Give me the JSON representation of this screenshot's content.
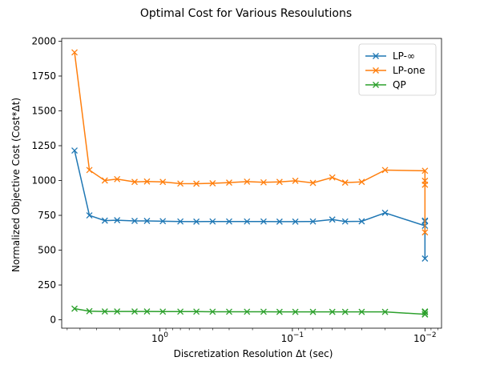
{
  "chart_data": {
    "type": "line",
    "title": "Optimal Cost for Various Resoulutions",
    "xlabel": "Discretization Resolution Δt (sec)",
    "ylabel": "Normalized Objective Cost (Cost*Δt)",
    "x_scale": "log",
    "x_inverted": true,
    "xlim": [
      5.5,
      0.0075
    ],
    "ylim": [
      -60,
      2020
    ],
    "x_ticks": [
      {
        "value": 1,
        "label": "10^0"
      },
      {
        "value": 0.1,
        "label": "10^-1"
      },
      {
        "value": 0.01,
        "label": "10^-2"
      }
    ],
    "y_ticks": [
      {
        "value": 0,
        "label": "0"
      },
      {
        "value": 250,
        "label": "250"
      },
      {
        "value": 500,
        "label": "500"
      },
      {
        "value": 750,
        "label": "750"
      },
      {
        "value": 1000,
        "label": "1000"
      },
      {
        "value": 1250,
        "label": "1250"
      },
      {
        "value": 1500,
        "label": "1500"
      },
      {
        "value": 1750,
        "label": "1750"
      },
      {
        "value": 2000,
        "label": "2000"
      }
    ],
    "grid": false,
    "legend_position": "top-right",
    "x": [
      4.4,
      3.4,
      2.6,
      2.1,
      1.55,
      1.25,
      0.95,
      0.7,
      0.53,
      0.4,
      0.3,
      0.22,
      0.165,
      0.125,
      0.095,
      0.07,
      0.05,
      0.04,
      0.03,
      0.02,
      0.01,
      0.01,
      0.01,
      0.01
    ],
    "series": [
      {
        "name": "LP-∞",
        "color": "#1f77b4",
        "values": [
          1215,
          750,
          712,
          715,
          710,
          710,
          708,
          706,
          705,
          706,
          706,
          706,
          706,
          705,
          705,
          706,
          720,
          706,
          707,
          768,
          675,
          712,
          440,
          707
        ]
      },
      {
        "name": "LP-one",
        "color": "#ff7f0e",
        "values": [
          1920,
          1075,
          1000,
          1010,
          990,
          993,
          990,
          978,
          977,
          980,
          985,
          992,
          987,
          990,
          998,
          983,
          1022,
          985,
          990,
          1075,
          1070,
          628,
          998,
          970
        ]
      },
      {
        "name": "QP",
        "color": "#2ca02c",
        "values": [
          80,
          62,
          60,
          60,
          60,
          60,
          59,
          59,
          59,
          58,
          58,
          58,
          58,
          57,
          57,
          57,
          57,
          57,
          57,
          57,
          40,
          55,
          38,
          60
        ]
      }
    ]
  }
}
